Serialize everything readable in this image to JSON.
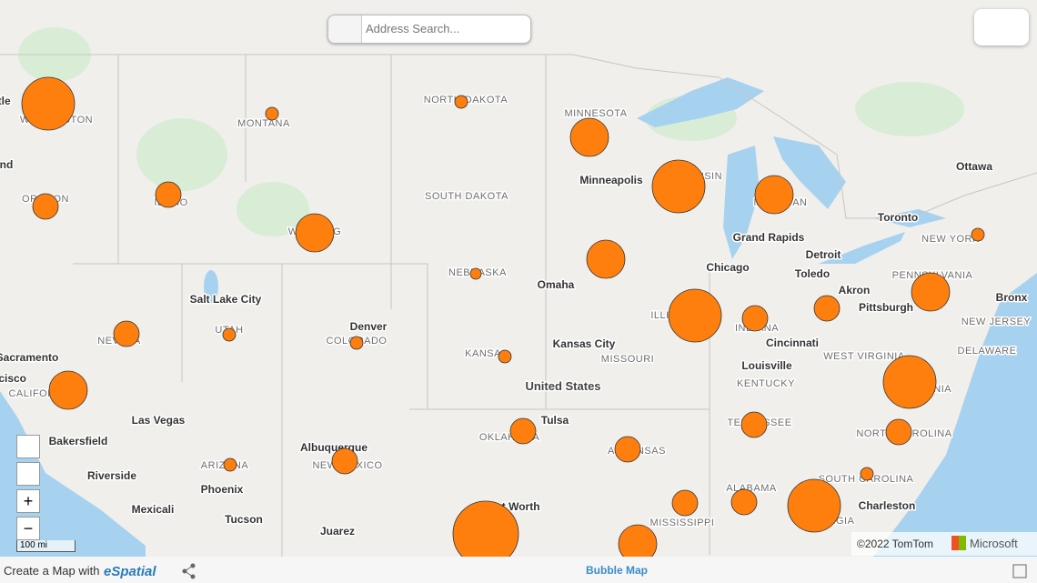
{
  "search": {
    "placeholder": "Address Search..."
  },
  "scale": "100 mi",
  "attribution": {
    "copyright": "©2022 TomTom",
    "provider": "Microsoft"
  },
  "footer": {
    "prefix": "Create a Map with",
    "brand": "eSpatial",
    "map_name": "Bubble Map"
  },
  "labels": [
    "WASHINGTON",
    "MONTANA",
    "NORTH DAKOTA",
    "MINNESOTA",
    "Minneapolis",
    "WISCONSIN",
    "MICHIGAN",
    "Ottawa",
    "Toronto",
    "NEW YORK",
    "IDAHO",
    "OREGON",
    "WYOMING",
    "SOUTH DAKOTA",
    "Grand Rapids",
    "Detroit",
    "Chicago",
    "Toledo",
    "Akron",
    "PENNSYLVANIA",
    "Pittsburgh",
    "Bronx",
    "NEW JERSEY",
    "NEBRASKA",
    "Omaha",
    "Salt Lake City",
    "UTAH",
    "NEVADA",
    "Denver",
    "COLORADO",
    "Kansas City",
    "ILLINOIS",
    "INDIANA",
    "Cincinnati",
    "WEST VIRGINIA",
    "DELAWARE",
    "Sacramento",
    "San Francisco",
    "CALIFORNIA",
    "KANSAS",
    "MISSOURI",
    "Louisville",
    "KENTUCKY",
    "VIRGINIA",
    "United States",
    "Tulsa",
    "TENNESSEE",
    "Las Vegas",
    "OKLAHOMA",
    "ARKANSAS",
    "NORTH CAROLINA",
    "Bakersfield",
    "Albuquerque",
    "ARIZONA",
    "NEW MEXICO",
    "Riverside",
    "SOUTH CAROLINA",
    "Phoenix",
    "ALABAMA",
    "Fort Worth",
    "Charleston",
    "Mexicali",
    "Tucson",
    "MISSISSIPPI",
    "GEORGIA",
    "Juarez",
    "Seattle",
    "Portland"
  ]
}
